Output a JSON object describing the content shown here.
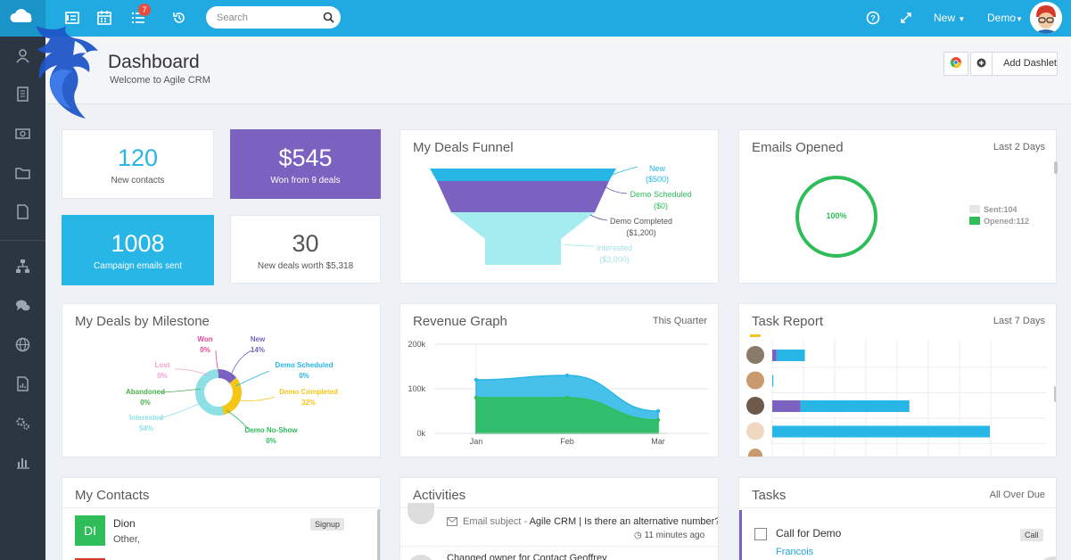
{
  "topbar": {
    "badge_count": "7",
    "search_placeholder": "Search",
    "new_label": "New",
    "demo_label": "Demo"
  },
  "header": {
    "title": "Dashboard",
    "subtitle": "Welcome to Agile CRM",
    "add_dashlet_label": "Add Dashlet"
  },
  "stats": [
    {
      "value": "120",
      "label": "New contacts"
    },
    {
      "value": "$545",
      "label": "Won from 9 deals"
    },
    {
      "value": "1008",
      "label": "Campaign emails sent"
    },
    {
      "value": "30",
      "label": "New deals worth $5,318"
    }
  ],
  "funnel": {
    "title": "My Deals Funnel",
    "stages": [
      {
        "name": "New",
        "value": "($500)",
        "color": "#27b6e6"
      },
      {
        "name": "Demo Scheduled",
        "value": "($0)",
        "color": "#7b62c0"
      },
      {
        "name": "Demo Completed",
        "value": "($1,200)",
        "color": "#a5ecf0"
      },
      {
        "name": "Interested",
        "value": "($3,000)",
        "color": "#a5ecf0"
      }
    ]
  },
  "emails_opened": {
    "title": "Emails Opened",
    "range": "Last 2 Days",
    "center_label": "100%",
    "legend": [
      {
        "label": "Sent:104",
        "color": "#e6e6e6"
      },
      {
        "label": "Opened:112",
        "color": "#2ebd59"
      }
    ]
  },
  "milestone": {
    "title": "My Deals by Milestone",
    "labels": [
      {
        "name": "Won",
        "pct": "0%",
        "color": "#e0489a"
      },
      {
        "name": "New",
        "pct": "14%",
        "color": "#7b62c0"
      },
      {
        "name": "Lost",
        "pct": "0%",
        "color": "#f2a2d0"
      },
      {
        "name": "Demo Scheduled",
        "pct": "0%",
        "color": "#27b6e6"
      },
      {
        "name": "Abandoned",
        "pct": "0%",
        "color": "#4caf50"
      },
      {
        "name": "Demo Completed",
        "pct": "32%",
        "color": "#f5c518"
      },
      {
        "name": "Interested",
        "pct": "54%",
        "color": "#8de0e6"
      },
      {
        "name": "Demo No-Show",
        "pct": "0%",
        "color": "#2ebd59"
      }
    ]
  },
  "revenue": {
    "title": "Revenue Graph",
    "range": "This Quarter"
  },
  "chart_data": {
    "type": "area",
    "title": "Revenue Graph",
    "categories": [
      "Jan",
      "Feb",
      "Mar"
    ],
    "y_ticks": [
      "200k",
      "100k",
      "0k"
    ],
    "ylim": [
      0,
      200000
    ],
    "series": [
      {
        "color": "#2ebd59",
        "values": [
          80000,
          80000,
          30000
        ]
      },
      {
        "color": "#27b6e6",
        "values": [
          120000,
          130000,
          50000
        ]
      }
    ]
  },
  "tasks_report": {
    "title": "Task Report",
    "range": "Last 7 Days",
    "rows": [
      {
        "purple": 0.02,
        "blue": 0.13
      },
      {
        "purple": 0.0,
        "blue": 0.005
      },
      {
        "purple": 0.13,
        "blue": 0.5
      },
      {
        "purple": 0.0,
        "blue": 1.0
      }
    ]
  },
  "contacts": {
    "title": "My Contacts",
    "items": [
      {
        "initials": "DI",
        "name": "Dion",
        "meta": "Other,",
        "tag": "Signup",
        "color": "#2ebd59"
      }
    ]
  },
  "activities": {
    "title": "Activities",
    "items": [
      {
        "label": "Email subject - ",
        "text": "Agile CRM | Is there an alternative number?",
        "time": "11 minutes ago"
      },
      {
        "text": "Changed owner for Contact Geoffrey"
      }
    ]
  },
  "tasks": {
    "title": "Tasks",
    "range": "All Over Due",
    "items": [
      {
        "title": "Call for Demo",
        "contact": "Francois",
        "tag": "Call"
      }
    ]
  }
}
